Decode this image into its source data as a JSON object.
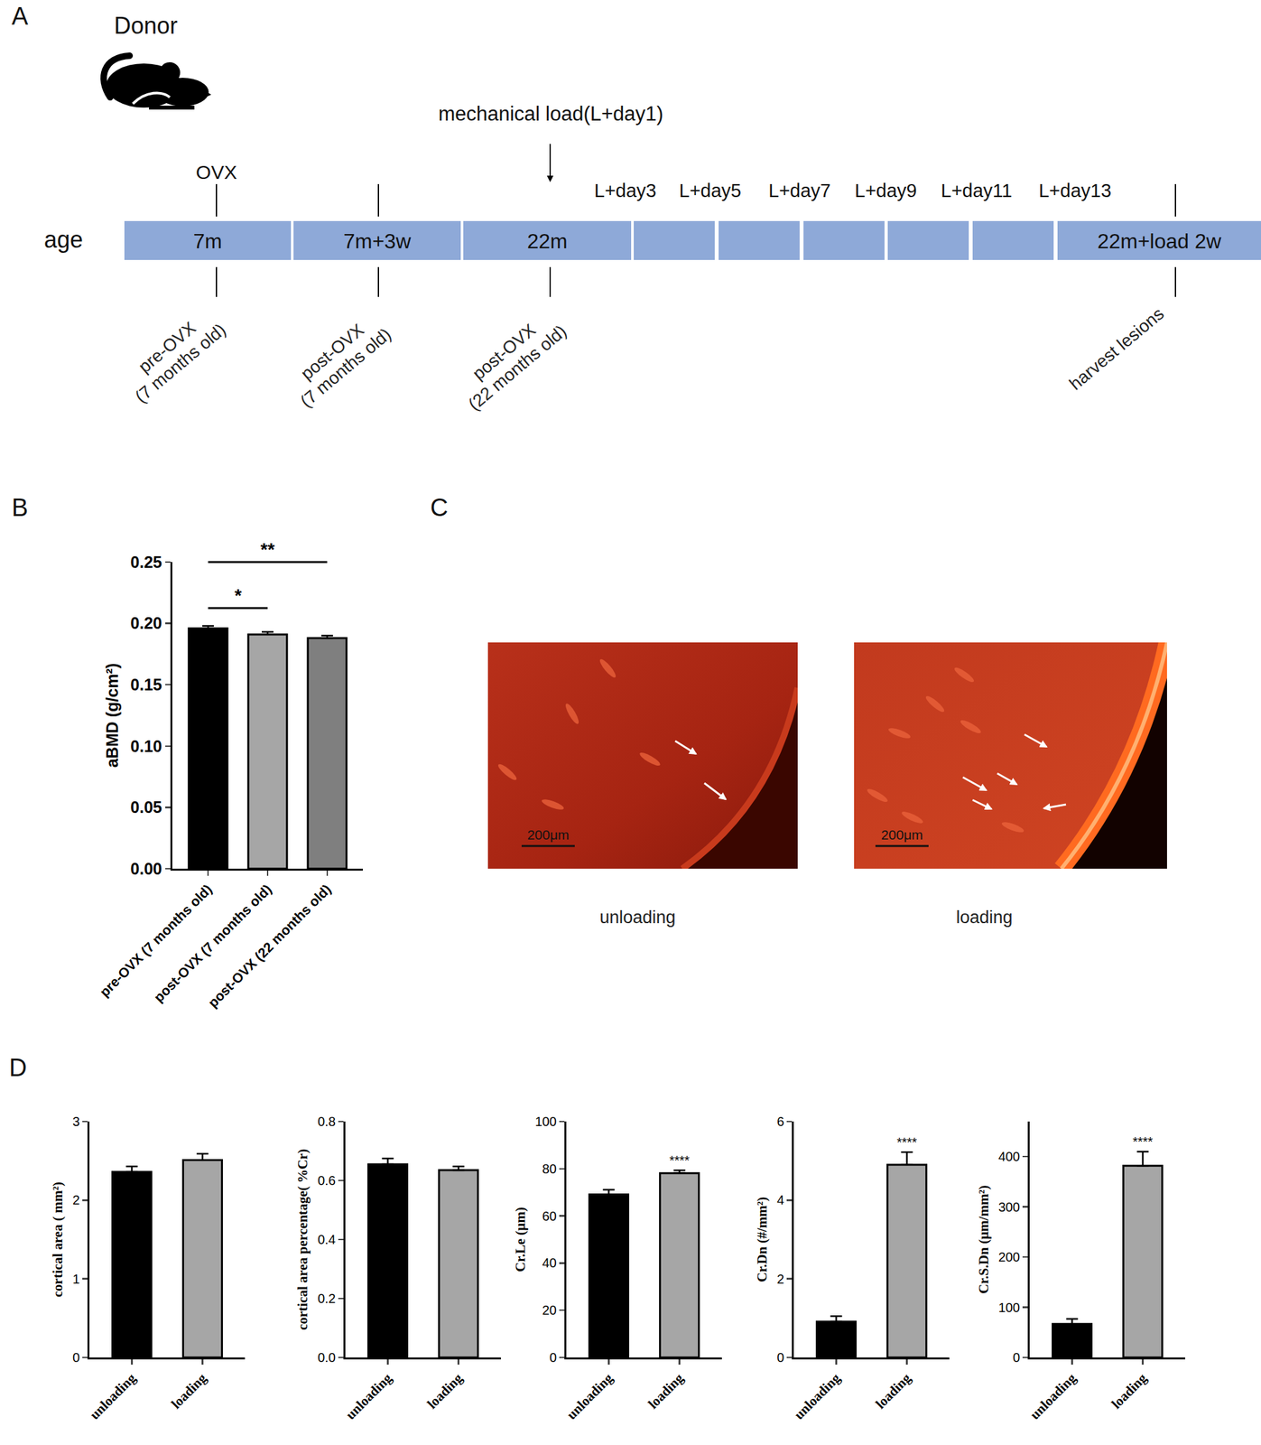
{
  "figure_labels": [
    "A",
    "B",
    "C",
    "D"
  ],
  "timeline": {
    "subject": "Donor",
    "row_label": "age",
    "segments": [
      "7m",
      "7m+3w",
      "22m",
      null,
      null,
      null,
      null,
      null,
      "22m+load 2w"
    ],
    "event_above": "OVX",
    "load_label": "mechanical load(L+day1)",
    "load_days": [
      "L+day3",
      "L+day5",
      "L+day7",
      "L+day9",
      "L+day11",
      "L+day13"
    ],
    "below_labels": [
      [
        "pre-OVX",
        "(7 months old)"
      ],
      [
        "post-OVX",
        "(7 months old)"
      ],
      [
        "post-OVX",
        "(22 months old)"
      ],
      [
        "harvest lesions"
      ]
    ]
  },
  "micrographs": {
    "scale_bar": "200μm",
    "captions": [
      "unloading",
      "loading"
    ]
  },
  "chart_data": [
    {
      "type": "bar",
      "y_label": "aBMD (g/cm²)",
      "categories": [
        "pre-OVX (7 months old)",
        "post-OVX (7 months old)",
        "post-OVX (22 months old)"
      ],
      "values": [
        0.196,
        0.191,
        0.188
      ],
      "errors": [
        0.002,
        0.002,
        0.002
      ],
      "colors": [
        "#000000",
        "#a6a6a6",
        "#7f7f7f"
      ],
      "ylim": [
        0,
        0.25
      ],
      "yticks": [
        {
          "value": 0,
          "label": "0.00"
        },
        0.05,
        {
          "value": 0.1,
          "label": "0.10"
        },
        0.15,
        {
          "value": 0.2,
          "label": "0.20"
        },
        0.25
      ],
      "grid": false,
      "brackets": [
        {
          "from": "pre-OVX (7 months old)",
          "to": "post-OVX (7 months old)",
          "text": "*"
        },
        {
          "from": "pre-OVX (7 months old)",
          "to": "post-OVX (22 months old)",
          "text": "**"
        }
      ]
    },
    {
      "type": "bar",
      "y_label": "cortical area ( mm²)",
      "categories": [
        "unloading",
        "loading"
      ],
      "values": [
        2.36,
        2.51
      ],
      "errors": [
        0.07,
        0.08
      ],
      "colors": [
        "#000000",
        "#a6a6a6"
      ],
      "ylim": [
        0,
        3
      ],
      "yticks": [
        0,
        1,
        2,
        3
      ],
      "grid": false
    },
    {
      "type": "bar",
      "y_label": "cortical area percentage( %Cr)",
      "categories": [
        "unloading",
        "loading"
      ],
      "values": [
        0.655,
        0.635
      ],
      "errors": [
        0.02,
        0.013
      ],
      "colors": [
        "#000000",
        "#a6a6a6"
      ],
      "ylim": [
        0,
        0.8
      ],
      "yticks": [
        {
          "value": 0,
          "label": "0.0"
        },
        0.2,
        0.4,
        0.6,
        0.8
      ],
      "grid": false
    },
    {
      "type": "bar",
      "y_label": "Cr.Le (μm)",
      "categories": [
        "unloading",
        "loading"
      ],
      "values": [
        69.1,
        78.1
      ],
      "errors": [
        2.0,
        1.2
      ],
      "colors": [
        "#000000",
        "#a6a6a6"
      ],
      "ylim": [
        0,
        100
      ],
      "yticks": [
        0,
        20,
        40,
        60,
        80,
        100
      ],
      "grid": false,
      "annotations": [
        {
          "category": "loading",
          "text": "****"
        }
      ]
    },
    {
      "type": "bar",
      "y_label": "Cr.Dn (#/mm²)",
      "categories": [
        "unloading",
        "loading"
      ],
      "values": [
        0.91,
        4.9
      ],
      "errors": [
        0.14,
        0.32
      ],
      "colors": [
        "#000000",
        "#a6a6a6"
      ],
      "ylim": [
        0,
        6
      ],
      "yticks": [
        0,
        2,
        4,
        6
      ],
      "grid": false,
      "annotations": [
        {
          "category": "loading",
          "text": "****"
        }
      ]
    },
    {
      "type": "bar",
      "y_label": "Cr.S.Dn (μm/mm²)",
      "categories": [
        "unloading",
        "loading"
      ],
      "values": [
        66.7,
        382
      ],
      "errors": [
        10,
        28
      ],
      "colors": [
        "#000000",
        "#a6a6a6"
      ],
      "ylim": [
        0,
        470
      ],
      "yticks": [
        0,
        100,
        200,
        300,
        400
      ],
      "grid": false,
      "annotations": [
        {
          "category": "loading",
          "text": "****"
        }
      ]
    }
  ]
}
